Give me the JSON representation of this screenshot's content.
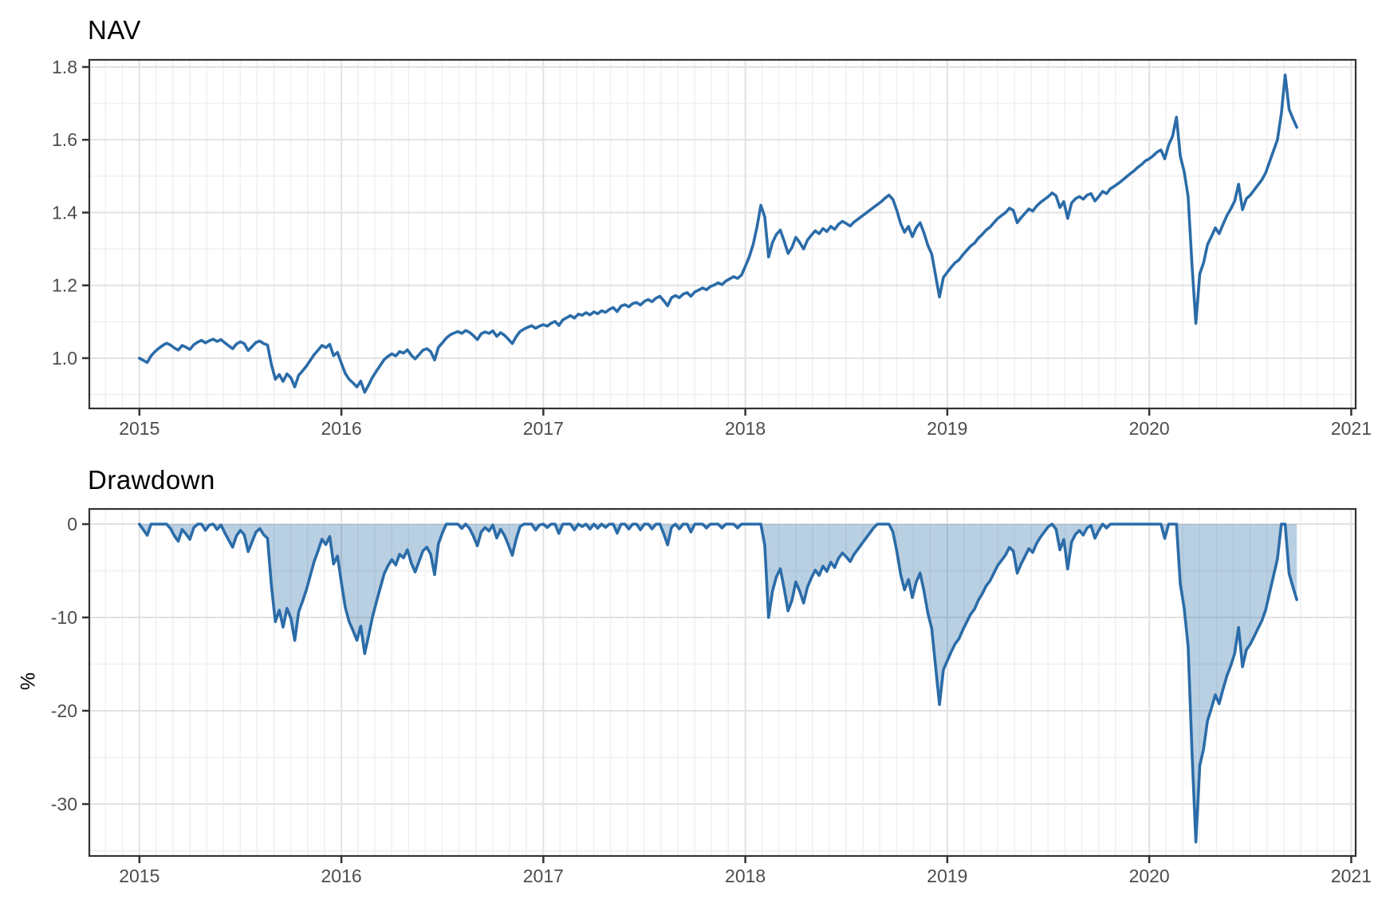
{
  "page": {
    "background": "#ffffff"
  },
  "style": {
    "line_color": "#2B6CA8",
    "fill_color": "#2B6CA8",
    "fill_opacity": 0.33,
    "grid_major_color": "#e2e2e2",
    "grid_minor_color": "#efefef",
    "panel_border_color": "#333333",
    "tick_mark_color": "#333333",
    "tick_label_color": "#4d4d4d",
    "title_color": "#000000"
  },
  "chart_data": [
    {
      "id": "nav",
      "type": "line",
      "title": "NAV",
      "xlabel": "",
      "ylabel": "",
      "x_domain": [
        2014.752,
        2021.022
      ],
      "x_ticks": [
        2015,
        2016,
        2017,
        2018,
        2019,
        2020,
        2021
      ],
      "x_tick_labels": [
        "2015",
        "2016",
        "2017",
        "2018",
        "2019",
        "2020",
        "2021"
      ],
      "x_minor_step_years": 0.0833333,
      "y_domain": [
        0.8618,
        1.8197
      ],
      "y_ticks": [
        1.0,
        1.2,
        1.4,
        1.6,
        1.8
      ],
      "y_tick_labels": [
        "1.0",
        "1.2",
        "1.4",
        "1.6",
        "1.8"
      ],
      "y_minor_ticks": [
        0.9,
        1.1,
        1.3,
        1.5,
        1.7
      ],
      "grid": true,
      "legend": "none",
      "series": [
        {
          "name": "NAV",
          "x_start": 2015.0,
          "x_step_years": 0.0192308,
          "values": [
            1.0,
            0.994,
            0.988,
            1.006,
            1.018,
            1.027,
            1.035,
            1.041,
            1.036,
            1.028,
            1.022,
            1.035,
            1.03,
            1.024,
            1.037,
            1.044,
            1.049,
            1.042,
            1.048,
            1.052,
            1.046,
            1.051,
            1.042,
            1.034,
            1.026,
            1.039,
            1.045,
            1.04,
            1.021,
            1.032,
            1.043,
            1.047,
            1.04,
            1.036,
            0.982,
            0.942,
            0.955,
            0.936,
            0.957,
            0.946,
            0.921,
            0.953,
            0.965,
            0.978,
            0.994,
            1.01,
            1.022,
            1.035,
            1.029,
            1.038,
            1.007,
            1.016,
            0.986,
            0.958,
            0.942,
            0.932,
            0.921,
            0.937,
            0.906,
            0.926,
            0.947,
            0.964,
            0.98,
            0.996,
            1.005,
            1.012,
            1.006,
            1.018,
            1.014,
            1.023,
            1.008,
            0.998,
            1.01,
            1.022,
            1.026,
            1.018,
            0.995,
            1.03,
            1.042,
            1.055,
            1.064,
            1.069,
            1.073,
            1.068,
            1.076,
            1.071,
            1.062,
            1.051,
            1.067,
            1.072,
            1.068,
            1.075,
            1.06,
            1.07,
            1.063,
            1.052,
            1.04,
            1.059,
            1.073,
            1.08,
            1.085,
            1.089,
            1.082,
            1.088,
            1.092,
            1.088,
            1.096,
            1.101,
            1.09,
            1.105,
            1.111,
            1.117,
            1.11,
            1.121,
            1.118,
            1.125,
            1.119,
            1.127,
            1.122,
            1.13,
            1.126,
            1.134,
            1.139,
            1.128,
            1.143,
            1.147,
            1.141,
            1.15,
            1.153,
            1.146,
            1.156,
            1.161,
            1.155,
            1.165,
            1.17,
            1.158,
            1.144,
            1.166,
            1.172,
            1.166,
            1.176,
            1.18,
            1.17,
            1.182,
            1.187,
            1.193,
            1.188,
            1.197,
            1.201,
            1.207,
            1.202,
            1.212,
            1.218,
            1.224,
            1.219,
            1.228,
            1.252,
            1.278,
            1.312,
            1.36,
            1.42,
            1.388,
            1.278,
            1.318,
            1.34,
            1.352,
            1.322,
            1.288,
            1.304,
            1.332,
            1.318,
            1.3,
            1.324,
            1.338,
            1.35,
            1.342,
            1.356,
            1.348,
            1.362,
            1.354,
            1.368,
            1.376,
            1.37,
            1.363,
            1.374,
            1.382,
            1.39,
            1.398,
            1.406,
            1.414,
            1.422,
            1.43,
            1.44,
            1.448,
            1.436,
            1.406,
            1.37,
            1.346,
            1.362,
            1.334,
            1.358,
            1.372,
            1.344,
            1.31,
            1.286,
            1.226,
            1.168,
            1.222,
            1.236,
            1.25,
            1.262,
            1.27,
            1.284,
            1.296,
            1.308,
            1.316,
            1.33,
            1.34,
            1.352,
            1.36,
            1.372,
            1.384,
            1.392,
            1.4,
            1.412,
            1.406,
            1.372,
            1.386,
            1.398,
            1.41,
            1.404,
            1.418,
            1.428,
            1.436,
            1.444,
            1.454,
            1.446,
            1.414,
            1.43,
            1.384,
            1.426,
            1.438,
            1.444,
            1.437,
            1.448,
            1.452,
            1.432,
            1.444,
            1.458,
            1.452,
            1.466,
            1.472,
            1.48,
            1.488,
            1.497,
            1.506,
            1.514,
            1.524,
            1.532,
            1.542,
            1.548,
            1.556,
            1.566,
            1.572,
            1.548,
            1.586,
            1.61,
            1.662,
            1.555,
            1.512,
            1.444,
            1.258,
            1.096,
            1.232,
            1.262,
            1.312,
            1.334,
            1.358,
            1.342,
            1.368,
            1.392,
            1.41,
            1.432,
            1.478,
            1.408,
            1.438,
            1.448,
            1.462,
            1.476,
            1.49,
            1.51,
            1.54,
            1.57,
            1.6,
            1.672,
            1.778,
            1.684,
            1.658,
            1.634
          ]
        }
      ]
    },
    {
      "id": "drawdown",
      "type": "area",
      "title": "Drawdown",
      "xlabel": "",
      "ylabel": "%",
      "x_domain": [
        2014.752,
        2021.022
      ],
      "x_ticks": [
        2015,
        2016,
        2017,
        2018,
        2019,
        2020,
        2021
      ],
      "x_tick_labels": [
        "2015",
        "2016",
        "2017",
        "2018",
        "2019",
        "2020",
        "2021"
      ],
      "x_minor_step_years": 0.0833333,
      "y_domain": [
        -35.56,
        1.624
      ],
      "y_ticks": [
        0,
        -10,
        -20,
        -30
      ],
      "y_tick_labels": [
        "0",
        "-10",
        "-20",
        "-30"
      ],
      "y_minor_ticks": [
        -5,
        -15,
        -25,
        -35
      ],
      "grid": true,
      "legend": "none",
      "series_derived": {
        "name": "Drawdown %",
        "derived_from": "chart_data.0.series.0.values",
        "formula": "100 * (nav / cummax(nav) - 1)",
        "approx_key_troughs_pct": {
          "2015-09": -12.5,
          "2016-02": -13.9,
          "2018-02": -10.0,
          "2018-12": -19.3,
          "2020-03": -34.1,
          "end": -8.1
        }
      }
    }
  ]
}
